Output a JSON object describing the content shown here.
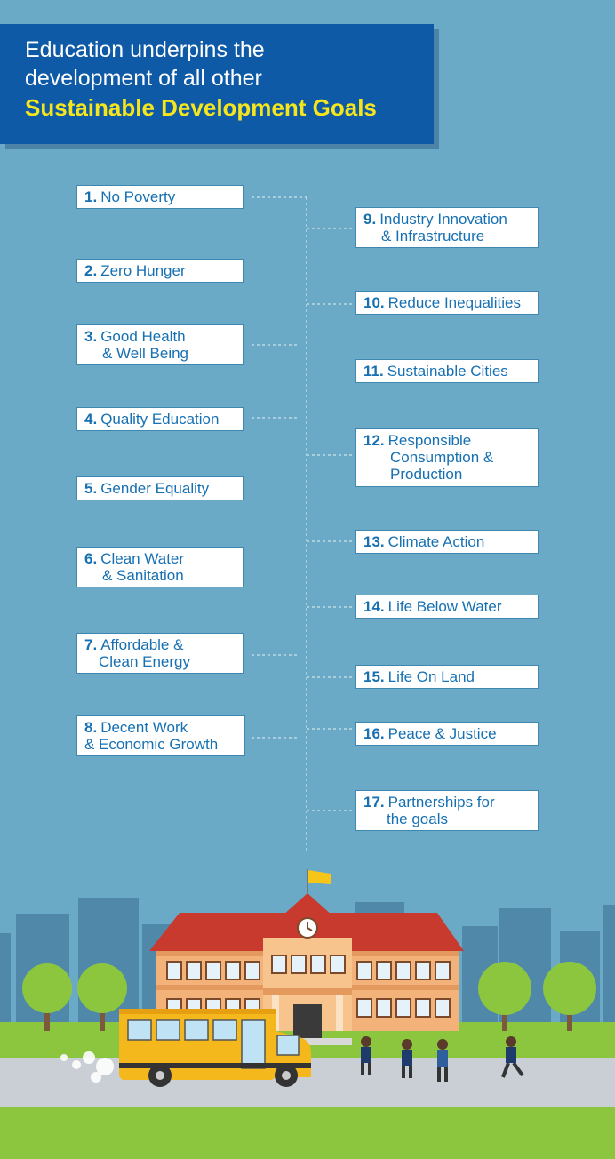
{
  "header": {
    "line1": "Education underpins the",
    "line2": "development of all other",
    "line3": "Sustainable Development Goals"
  },
  "goals_left": [
    {
      "num": "1.",
      "line1": "No Poverty",
      "line2": ""
    },
    {
      "num": "2.",
      "line1": "Zero Hunger",
      "line2": ""
    },
    {
      "num": "3.",
      "line1": "Good Health",
      "line2": "& Well Being"
    },
    {
      "num": "4.",
      "line1": "Quality Education",
      "line2": ""
    },
    {
      "num": "5.",
      "line1": "Gender Equality",
      "line2": ""
    },
    {
      "num": "6.",
      "line1": "Clean Water",
      "line2": "& Sanitation"
    },
    {
      "num": "7.",
      "line1": "Affordable &",
      "line2": "Clean Energy"
    },
    {
      "num": "8.",
      "line1": "Decent Work",
      "line2": "& Economic Growth"
    }
  ],
  "goals_right": [
    {
      "num": "9.",
      "line1": "Industry Innovation",
      "line2": "& Infrastructure"
    },
    {
      "num": "10.",
      "line1": "Reduce Inequalities",
      "line2": ""
    },
    {
      "num": "11.",
      "line1": "Sustainable Cities",
      "line2": ""
    },
    {
      "num": "12.",
      "line1": "Responsible",
      "line2": "Consumption &",
      "line3": "Production"
    },
    {
      "num": "13.",
      "line1": "Climate Action",
      "line2": ""
    },
    {
      "num": "14.",
      "line1": "Life Below Water",
      "line2": ""
    },
    {
      "num": "15.",
      "line1": "Life On Land",
      "line2": ""
    },
    {
      "num": "16.",
      "line1": "Peace & Justice",
      "line2": ""
    },
    {
      "num": "17.",
      "line1": "Partnerships for",
      "line2": "the goals"
    }
  ],
  "colors": {
    "background": "#6aaac6",
    "header_bg": "#0e5aa7",
    "header_highlight": "#f4e51e",
    "goal_text": "#1670b2",
    "roof": "#c83a2e",
    "wall": "#f2b27a",
    "bus": "#f5b81c",
    "grass": "#8cc63f",
    "road": "#c9cfd5"
  }
}
